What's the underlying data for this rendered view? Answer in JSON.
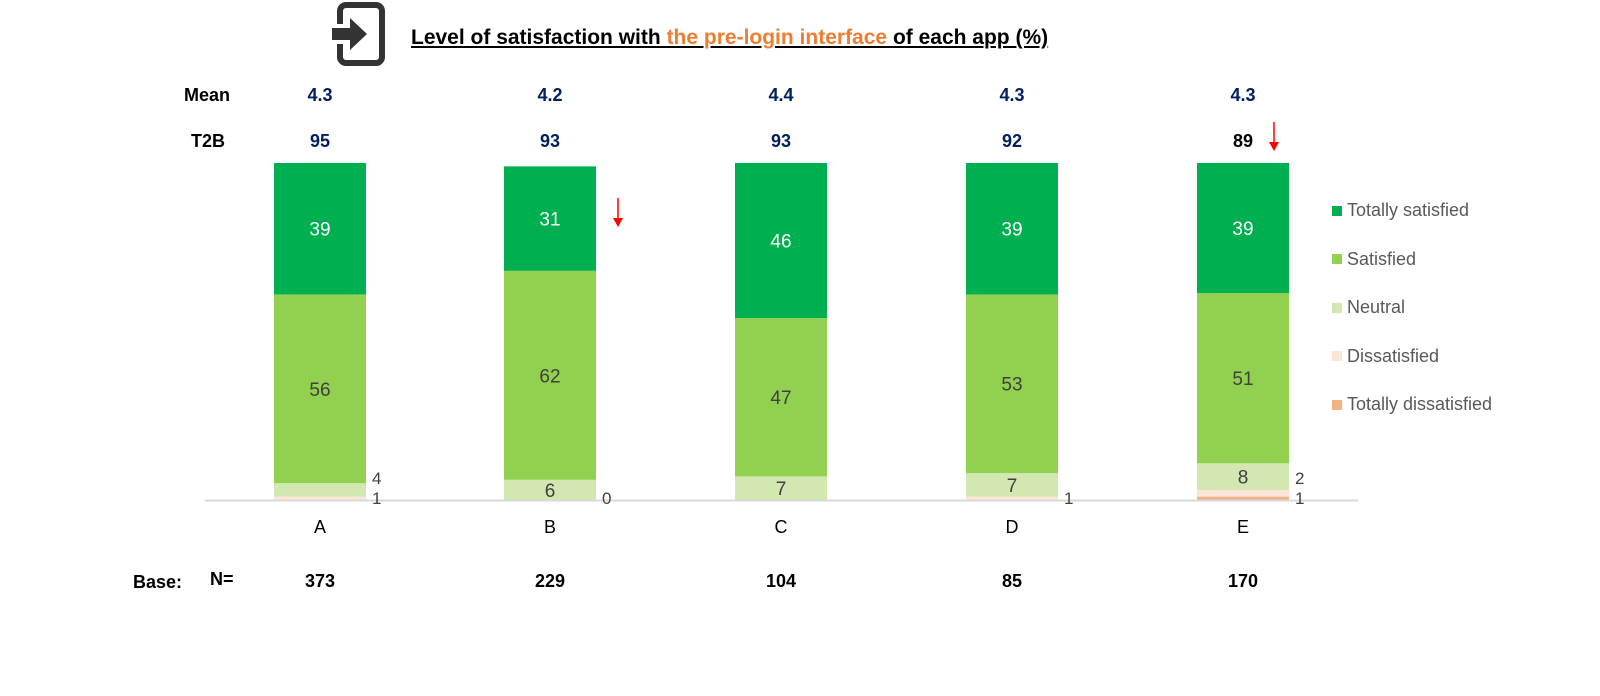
{
  "title": {
    "part1": "Level of satisfaction with ",
    "highlight": "the pre-login interface ",
    "part2": "of each app (%)",
    "icon": "login-icon"
  },
  "row_labels": {
    "mean": "Mean",
    "t2b": "T2B",
    "base": "Base:",
    "n": "N="
  },
  "colors": {
    "Totally satisfied": "#00b050",
    "Satisfied": "#92d050",
    "Neutral": "#d2e8b0",
    "Dissatisfied": "#fce4d6",
    "Totally dissatisfied": "#f4b183",
    "mean_text": "#002060",
    "highlight": "#ed7d31",
    "arrow": "#ff0000"
  },
  "chart_data": {
    "type": "bar",
    "stacked": true,
    "categories": [
      "A",
      "B",
      "C",
      "D",
      "E"
    ],
    "series": [
      {
        "name": "Totally dissatisfied",
        "values": [
          0,
          0,
          0,
          0,
          1
        ]
      },
      {
        "name": "Dissatisfied",
        "values": [
          1,
          0,
          0,
          1,
          2
        ]
      },
      {
        "name": "Neutral",
        "values": [
          4,
          6,
          7,
          7,
          8
        ]
      },
      {
        "name": "Satisfied",
        "values": [
          56,
          62,
          47,
          53,
          51
        ]
      },
      {
        "name": "Totally satisfied",
        "values": [
          39,
          31,
          46,
          39,
          39
        ]
      }
    ],
    "ylim": [
      0,
      100
    ],
    "legend_position": "right",
    "legend": [
      "Totally satisfied",
      "Satisfied",
      "Neutral",
      "Dissatisfied",
      "Totally dissatisfied"
    ],
    "mean": [
      "4.3",
      "4.2",
      "4.4",
      "4.3",
      "4.3"
    ],
    "t2b": [
      "95",
      "93",
      "93",
      "92",
      "89"
    ],
    "base_n": [
      "373",
      "229",
      "104",
      "85",
      "170"
    ],
    "significant_decrease": [
      {
        "category": "B",
        "metric": "Totally satisfied"
      },
      {
        "category": "E",
        "metric": "T2B"
      }
    ]
  }
}
